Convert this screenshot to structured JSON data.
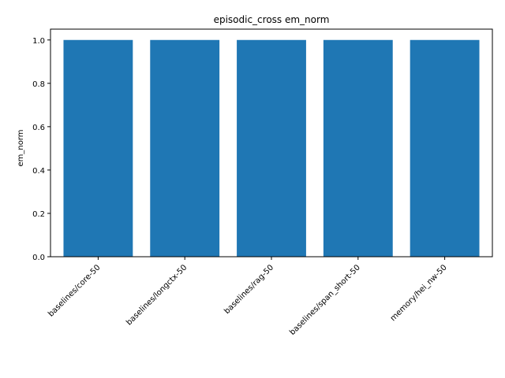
{
  "chart_data": {
    "type": "bar",
    "title": "episodic_cross em_norm",
    "xlabel": "",
    "ylabel": "em_norm",
    "categories": [
      "baselines/core-50",
      "baselines/longctx-50",
      "baselines/rag-50",
      "baselines/span_short-50",
      "memory/hei_nw-50"
    ],
    "values": [
      1.0,
      1.0,
      1.0,
      1.0,
      1.0
    ],
    "ylim": [
      0.0,
      1.05
    ],
    "yticks": [
      "0.0",
      "0.2",
      "0.4",
      "0.6",
      "0.8",
      "1.0"
    ],
    "ytick_values": [
      0.0,
      0.2,
      0.4,
      0.6,
      0.8,
      1.0
    ],
    "grid": false,
    "bar_color": "#1f77b4"
  }
}
